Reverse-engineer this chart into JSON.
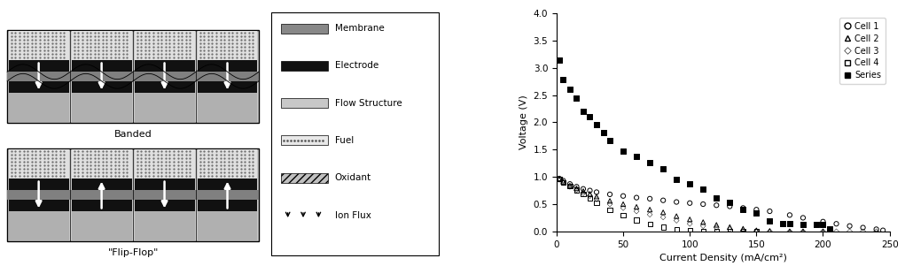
{
  "cell1_x": [
    2,
    5,
    10,
    15,
    20,
    25,
    30,
    40,
    50,
    60,
    70,
    80,
    90,
    100,
    110,
    120,
    130,
    140,
    150,
    160,
    175,
    185,
    200,
    210,
    220,
    230,
    240,
    245
  ],
  "cell1_y": [
    0.97,
    0.93,
    0.87,
    0.82,
    0.78,
    0.75,
    0.72,
    0.68,
    0.65,
    0.62,
    0.6,
    0.57,
    0.54,
    0.52,
    0.5,
    0.48,
    0.46,
    0.43,
    0.4,
    0.37,
    0.3,
    0.25,
    0.18,
    0.14,
    0.1,
    0.07,
    0.04,
    0.02
  ],
  "cell2_x": [
    2,
    5,
    10,
    15,
    20,
    25,
    30,
    40,
    50,
    60,
    70,
    80,
    90,
    100,
    110,
    120,
    130,
    140,
    150,
    160,
    175,
    185,
    200
  ],
  "cell2_y": [
    0.96,
    0.91,
    0.84,
    0.79,
    0.74,
    0.69,
    0.64,
    0.56,
    0.5,
    0.45,
    0.4,
    0.35,
    0.28,
    0.22,
    0.17,
    0.12,
    0.08,
    0.05,
    0.02,
    0.01,
    0.0,
    0.0,
    0.0
  ],
  "cell3_x": [
    2,
    5,
    10,
    15,
    20,
    25,
    30,
    40,
    50,
    60,
    70,
    80,
    90,
    100,
    110,
    120,
    130,
    140,
    150,
    160,
    175,
    185,
    200,
    210,
    220,
    230,
    240
  ],
  "cell3_y": [
    0.95,
    0.89,
    0.82,
    0.76,
    0.7,
    0.65,
    0.59,
    0.5,
    0.43,
    0.37,
    0.31,
    0.26,
    0.2,
    0.14,
    0.1,
    0.07,
    0.04,
    0.02,
    0.01,
    0.0,
    0.0,
    0.0,
    0.0,
    0.0,
    0.0,
    0.0,
    0.0
  ],
  "cell4_x": [
    2,
    5,
    10,
    15,
    20,
    25,
    30,
    40,
    50,
    60,
    70,
    80,
    90,
    100,
    110,
    120,
    130,
    140,
    150
  ],
  "cell4_y": [
    0.96,
    0.9,
    0.83,
    0.76,
    0.69,
    0.61,
    0.52,
    0.4,
    0.3,
    0.21,
    0.14,
    0.08,
    0.04,
    0.02,
    0.01,
    0.0,
    0.0,
    0.0,
    0.0
  ],
  "series_x": [
    2,
    5,
    10,
    15,
    20,
    25,
    30,
    35,
    40,
    50,
    60,
    70,
    80,
    90,
    100,
    110,
    120,
    130,
    140,
    150,
    160,
    170,
    175,
    185,
    195,
    200,
    205
  ],
  "series_y": [
    3.14,
    2.79,
    2.6,
    2.44,
    2.21,
    2.1,
    1.96,
    1.82,
    1.67,
    1.48,
    1.38,
    1.26,
    1.15,
    0.96,
    0.88,
    0.77,
    0.62,
    0.54,
    0.4,
    0.34,
    0.19,
    0.15,
    0.14,
    0.13,
    0.13,
    0.12,
    0.04
  ],
  "xlabel": "Current Density (mA/cm²)",
  "ylabel": "Voltage (V)",
  "xlim": [
    0,
    250
  ],
  "ylim": [
    0,
    4.0
  ],
  "yticks": [
    0.0,
    0.5,
    1.0,
    1.5,
    2.0,
    2.5,
    3.0,
    3.5,
    4.0
  ],
  "xticks": [
    0,
    50,
    100,
    150,
    200,
    250
  ],
  "legend_labels": [
    "Cell 1",
    "Cell 2",
    "Cell 3",
    "Cell 4",
    "Series"
  ]
}
